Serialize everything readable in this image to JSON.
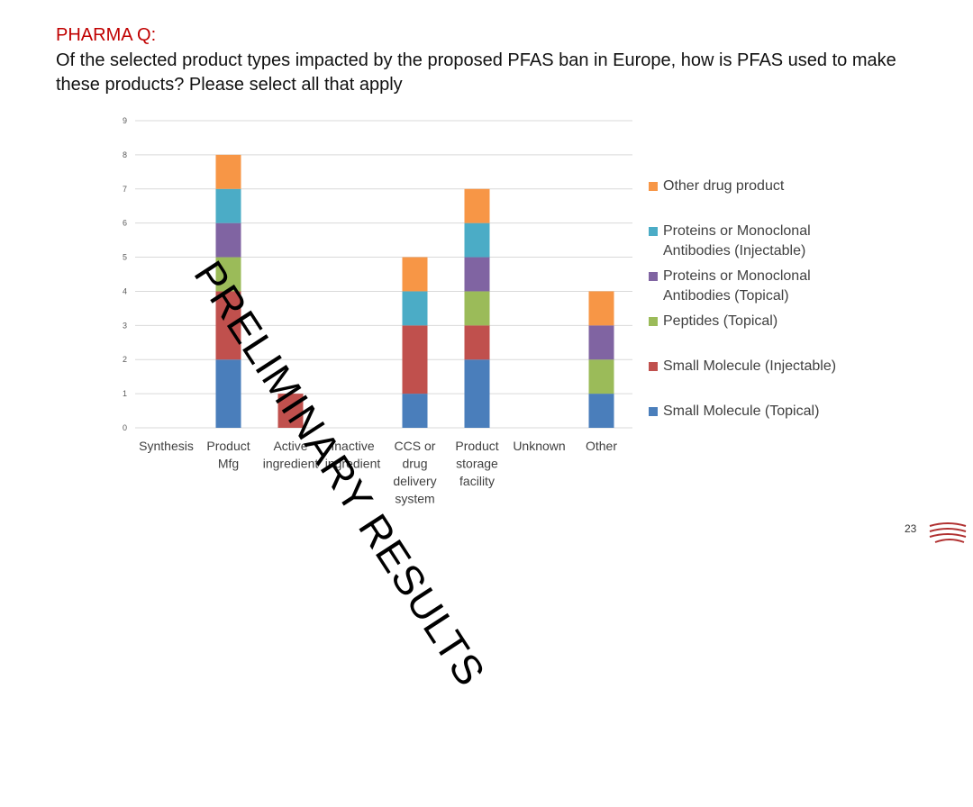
{
  "slide": {
    "kicker": "PHARMA Q:",
    "question": "Of the selected product types impacted by the proposed PFAS ban in Europe, how is PFAS used to make these products?   Please select all that apply",
    "watermark": "PRELIMINARY RESULTS",
    "page_number": "23"
  },
  "chart_data": {
    "type": "bar",
    "stacked": true,
    "categories": [
      [
        "Synthesis"
      ],
      [
        "Product",
        "Mfg"
      ],
      [
        "Active",
        "ingredient"
      ],
      [
        "Inactive",
        "ingredient"
      ],
      [
        "CCS or",
        "drug",
        "delivery",
        "system"
      ],
      [
        "Product",
        "storage",
        "facility"
      ],
      [
        "Unknown"
      ],
      [
        "Other"
      ]
    ],
    "series": [
      {
        "name": "Small Molecule (Topical)",
        "color": "#4a7ebb",
        "values": [
          0,
          2,
          0,
          0,
          1,
          2,
          0,
          1
        ]
      },
      {
        "name": "Small Molecule (Injectable)",
        "color": "#c0504d",
        "values": [
          0,
          2,
          1,
          0,
          2,
          1,
          0,
          0
        ]
      },
      {
        "name": "Peptides (Topical)",
        "color": "#9bbb59",
        "values": [
          0,
          1,
          0,
          0,
          0,
          1,
          0,
          1
        ]
      },
      {
        "name": "Proteins or Monoclonal Antibodies (Topical)",
        "color": "#8064a2",
        "values": [
          0,
          1,
          0,
          0,
          0,
          1,
          0,
          1
        ]
      },
      {
        "name": "Proteins or Monoclonal Antibodies (Injectable)",
        "color": "#4bacc6",
        "values": [
          0,
          1,
          0,
          0,
          1,
          1,
          0,
          0
        ]
      },
      {
        "name": "Other drug product",
        "color": "#f79646",
        "values": [
          0,
          1,
          0,
          0,
          1,
          1,
          0,
          1
        ]
      }
    ],
    "ylim": [
      0,
      9
    ],
    "yticks": [
      0,
      1,
      2,
      3,
      4,
      5,
      6,
      7,
      8,
      9
    ],
    "grid": true,
    "legend_position": "right",
    "legend_order": [
      "Other drug product",
      "Proteins or Monoclonal Antibodies (Injectable)",
      "Proteins or Monoclonal Antibodies (Topical)",
      "Peptides (Topical)",
      "Small Molecule (Injectable)",
      "Small Molecule (Topical)"
    ],
    "legend_lines": {
      "Other drug product": [
        "Other drug product"
      ],
      "Proteins or Monoclonal Antibodies (Injectable)": [
        "Proteins or Monoclonal",
        "Antibodies (Injectable)"
      ],
      "Proteins or Monoclonal Antibodies (Topical)": [
        "Proteins or Monoclonal",
        "Antibodies (Topical)"
      ],
      "Peptides (Topical)": [
        "Peptides (Topical)"
      ],
      "Small Molecule (Injectable)": [
        "Small Molecule (Injectable)"
      ],
      "Small Molecule (Topical)": [
        "Small Molecule (Topical)"
      ]
    }
  }
}
